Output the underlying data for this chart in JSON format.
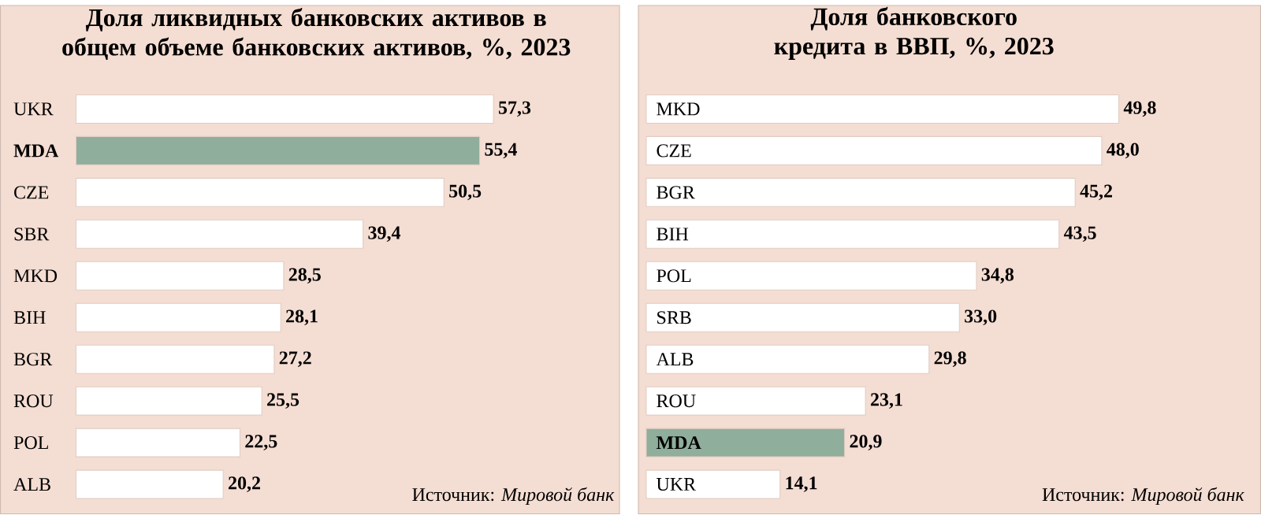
{
  "chart_data": [
    {
      "type": "bar",
      "orientation": "horizontal",
      "title": "Доля ликвидных банковских активов в общем объеме банковских активов, %, 2023",
      "categories": [
        "UKR",
        "MDA",
        "CZE",
        "SBR",
        "MKD",
        "BIH",
        "BGR",
        "ROU",
        "POL",
        "ALB"
      ],
      "values": [
        57.3,
        55.4,
        50.5,
        39.4,
        28.5,
        28.1,
        27.2,
        25.5,
        22.5,
        20.2
      ],
      "colors": [
        "#ffffff",
        "#8fae9c",
        "#ffffff",
        "#ffffff",
        "#ffffff",
        "#ffffff",
        "#ffffff",
        "#ffffff",
        "#ffffff",
        "#ffffff"
      ],
      "value_labels": [
        "57,3",
        "55,4",
        "50,5",
        "39,4",
        "28,5",
        "28,1",
        "27,2",
        "25,5",
        "22,5",
        "20,2"
      ],
      "annotations": [
        "Источник: *Мировой банк*"
      ]
    },
    {
      "type": "bar",
      "orientation": "horizontal",
      "title": "Доля банковского кредита в ВВП, %, 2023",
      "categories": [
        "MKD",
        "CZE",
        "BGR",
        "BIH",
        "POL",
        "SRB",
        "ALB",
        "ROU",
        "MDA",
        "UKR"
      ],
      "values": [
        49.8,
        48.0,
        45.2,
        43.5,
        34.8,
        33.0,
        29.8,
        23.1,
        20.9,
        14.1
      ],
      "colors": [
        "#ffffff",
        "#ffffff",
        "#ffffff",
        "#ffffff",
        "#ffffff",
        "#ffffff",
        "#ffffff",
        "#ffffff",
        "#8fae9c",
        "#ffffff"
      ],
      "value_labels": [
        "49,8",
        "48,0",
        "45,2",
        "43,5",
        "34,8",
        "33,0",
        "29,8",
        "23,1",
        "20,9",
        "14,1"
      ],
      "annotations": [
        "Источник: *Мировой банк*"
      ]
    }
  ]
}
